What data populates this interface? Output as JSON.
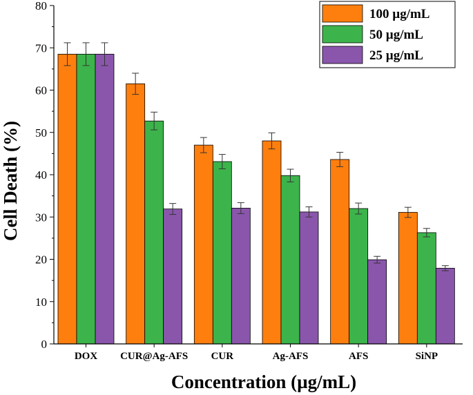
{
  "chart_data": {
    "type": "bar",
    "title": "",
    "xlabel": "Concentration (µg/mL)",
    "ylabel": "Cell Death (%)",
    "ylim": [
      0,
      80
    ],
    "yticks": [
      0,
      10,
      20,
      30,
      40,
      50,
      60,
      70,
      80
    ],
    "categories": [
      "DOX",
      "CUR@Ag-AFS",
      "CUR",
      "Ag-AFS",
      "AFS",
      "SiNP"
    ],
    "series": [
      {
        "name": "100 µg/mL",
        "color": "#ff7f0e",
        "values": [
          68.5,
          61.5,
          47.0,
          48.0,
          43.6,
          31.1
        ],
        "errors": [
          2.7,
          2.5,
          1.8,
          1.9,
          1.7,
          1.2
        ]
      },
      {
        "name": "50 µg/mL",
        "color": "#3cb44b",
        "values": [
          68.5,
          52.7,
          43.1,
          39.8,
          32.0,
          26.3
        ],
        "errors": [
          2.7,
          2.1,
          1.7,
          1.5,
          1.3,
          1.0
        ]
      },
      {
        "name": "25 µg/mL",
        "color": "#8a56ac",
        "values": [
          68.5,
          31.9,
          32.1,
          31.2,
          19.9,
          17.9
        ],
        "errors": [
          2.7,
          1.3,
          1.3,
          1.2,
          0.8,
          0.6
        ]
      }
    ],
    "legend_position": "top-right",
    "grid": false
  }
}
